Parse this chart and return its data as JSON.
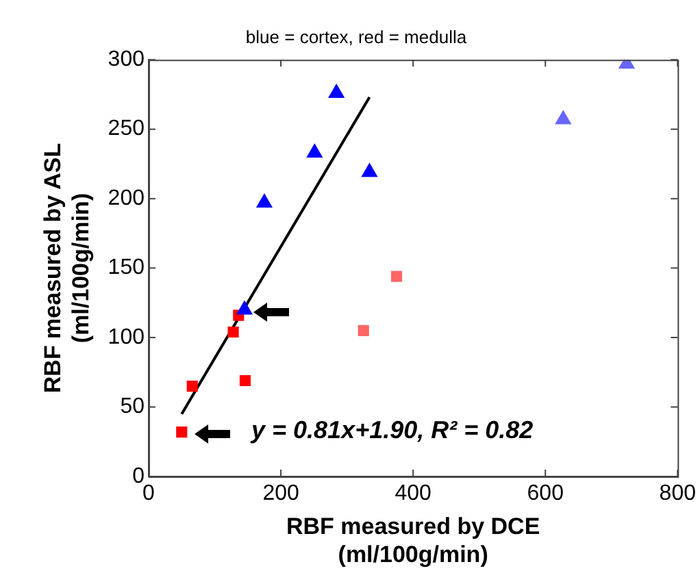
{
  "chart_data": {
    "type": "scatter",
    "subtitle": "blue = cortex, red = medulla",
    "xlabel": "RBF measured by DCE\n(ml/100g/min)",
    "ylabel": "RBF measured by ASL\n(ml/100g/min)",
    "xlim": [
      0,
      800
    ],
    "xticks": [
      0,
      200,
      400,
      600,
      800
    ],
    "ylim": [
      0,
      300
    ],
    "yticks": [
      0,
      50,
      100,
      150,
      200,
      250,
      300
    ],
    "grid": false,
    "legend": false,
    "annotations": [
      "y = 0.81x+1.90, R² = 0.82"
    ],
    "series": [
      {
        "color": "#0000ff",
        "marker": "triangle",
        "x": [
          145,
          175,
          251,
          284,
          334
        ],
        "values": [
          120,
          197,
          233,
          276,
          219
        ]
      },
      {
        "color": "#6666ff",
        "marker": "triangle",
        "x": [
          627,
          723
        ],
        "values": [
          257,
          297
        ]
      },
      {
        "color": "#ff0000",
        "marker": "square",
        "x": [
          50,
          66,
          128,
          136,
          146
        ],
        "values": [
          32,
          65,
          104,
          116,
          69
        ]
      },
      {
        "color": "#ff6666",
        "marker": "square",
        "x": [
          325,
          375
        ],
        "values": [
          105,
          144
        ]
      },
      {
        "type": "line",
        "color": "#000000",
        "marker": "none",
        "x": [
          50,
          334
        ],
        "values": [
          45,
          273
        ]
      }
    ]
  }
}
